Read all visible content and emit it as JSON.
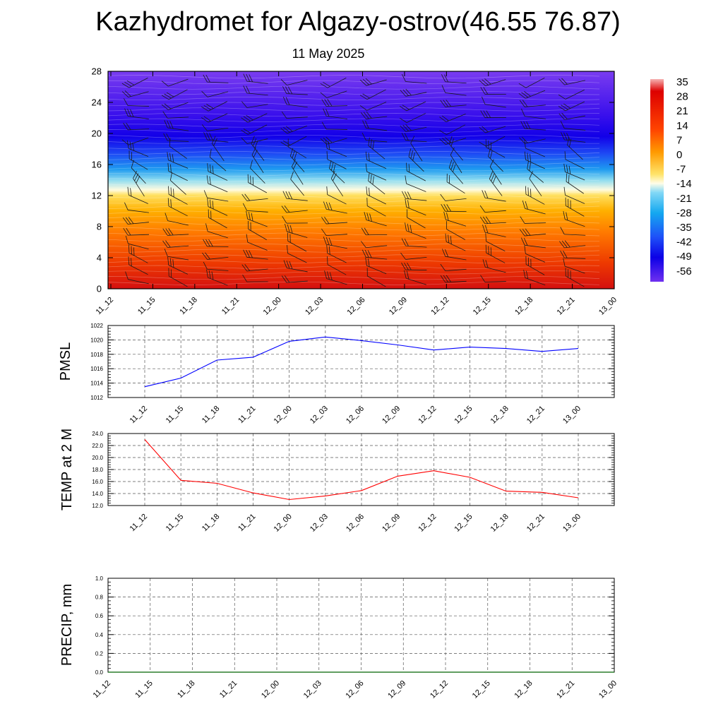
{
  "header": {
    "title": "Kazhydromet for Algazy-ostrov(46.55 76.87)",
    "subtitle": "11 May 2025"
  },
  "chart_data": [
    {
      "type": "heatmap",
      "name": "vertical-profile",
      "y_ticks": [
        0,
        4,
        8,
        12,
        16,
        20,
        24,
        28
      ],
      "ylim": [
        0,
        28
      ],
      "x_ticks": [
        "11_12",
        "11_15",
        "11_18",
        "11_21",
        "12_00",
        "12_03",
        "12_06",
        "12_09",
        "12_12",
        "12_15",
        "12_18",
        "12_21",
        "13_00"
      ],
      "colorbar_labels": [
        "35",
        "28",
        "21",
        "14",
        "7",
        "0",
        "-7",
        "-14",
        "-21",
        "-28",
        "-35",
        "-42",
        "-49",
        "-56"
      ],
      "colors": [
        "#f4a9a9",
        "#d40000",
        "#ff6600",
        "#ffd43a",
        "#fff6b0",
        "#3ec8f4",
        "#2266ff",
        "#0a00e0",
        "#6a2ff0"
      ]
    },
    {
      "type": "line",
      "name": "pmsl",
      "ylabel": "PMSL",
      "x": [
        "11_12",
        "11_15",
        "11_18",
        "11_21",
        "12_00",
        "12_03",
        "12_06",
        "12_09",
        "12_12",
        "12_15",
        "12_18",
        "12_21",
        "13_00"
      ],
      "values": [
        1013.5,
        1014.7,
        1017.2,
        1017.6,
        1019.8,
        1020.4,
        1019.9,
        1019.3,
        1018.6,
        1019.0,
        1018.8,
        1018.4,
        1018.8
      ],
      "ylim": [
        1012,
        1022
      ],
      "y_ticks": [
        "1012",
        "1014",
        "1016",
        "1018",
        "1020",
        "1022"
      ],
      "color": "#0000ff"
    },
    {
      "type": "line",
      "name": "temp2m",
      "ylabel": "TEMP at 2 M",
      "x": [
        "11_12",
        "11_15",
        "11_18",
        "11_21",
        "12_00",
        "12_03",
        "12_06",
        "12_09",
        "12_12",
        "12_15",
        "12_18",
        "12_21",
        "13_00"
      ],
      "values": [
        23.0,
        16.2,
        15.7,
        14.1,
        13.0,
        13.6,
        14.5,
        16.9,
        17.8,
        16.7,
        14.4,
        14.2,
        13.3
      ],
      "ylim": [
        12,
        24
      ],
      "y_ticks": [
        "12.0",
        "14.0",
        "16.0",
        "18.0",
        "20.0",
        "22.0",
        "24.0"
      ],
      "color": "#ff0000"
    },
    {
      "type": "line",
      "name": "precip",
      "ylabel": "PRECIP, mm",
      "x": [
        "11_12",
        "11_15",
        "11_18",
        "11_21",
        "12_00",
        "12_03",
        "12_06",
        "12_09",
        "12_12",
        "12_15",
        "12_18",
        "12_21",
        "13_00"
      ],
      "values": [
        0,
        0,
        0,
        0,
        0,
        0,
        0,
        0,
        0,
        0,
        0,
        0,
        0
      ],
      "ylim": [
        0,
        1
      ],
      "y_ticks": [
        "0.0",
        "0.2",
        "0.4",
        "0.6",
        "0.8",
        "1.0"
      ],
      "color": "#006400"
    }
  ]
}
